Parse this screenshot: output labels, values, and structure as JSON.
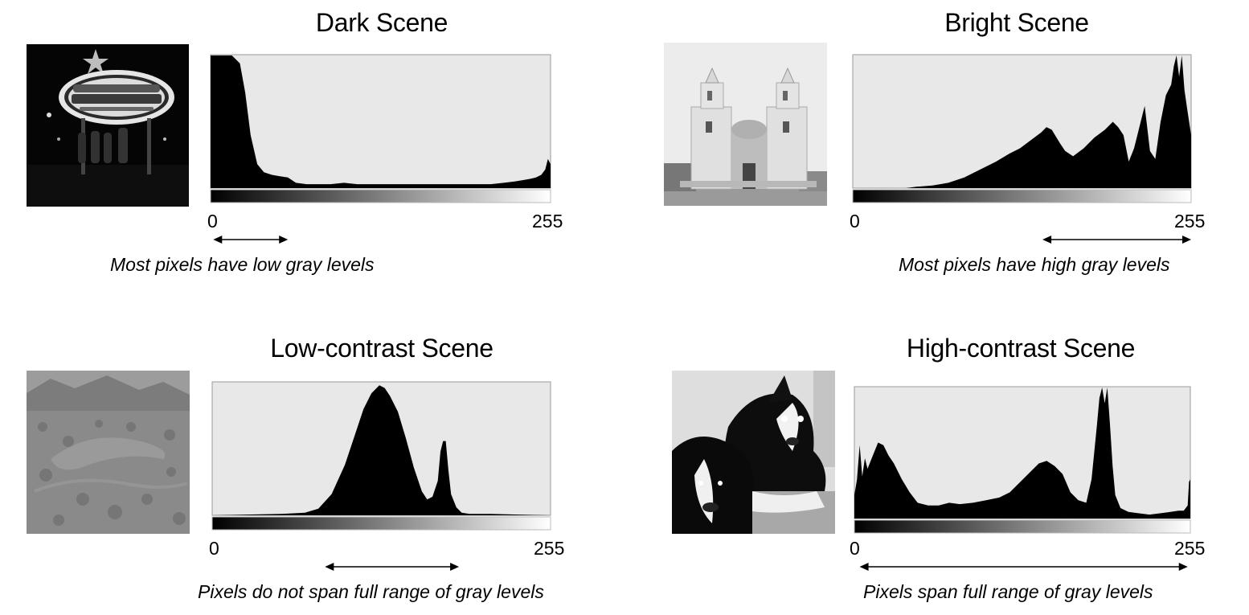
{
  "panels": [
    {
      "id": "dark",
      "title": "Dark Scene",
      "photo_icon": "night-sign-photo",
      "tick_min": "0",
      "tick_max": "255",
      "caption": "Most pixels have low gray levels",
      "range": [
        2,
        58
      ]
    },
    {
      "id": "bright",
      "title": "Bright Scene",
      "photo_icon": "church-photo",
      "tick_min": "0",
      "tick_max": "255",
      "caption": "Most pixels have high gray levels",
      "range": [
        143,
        255
      ]
    },
    {
      "id": "low",
      "title": "Low-contrast Scene",
      "photo_icon": "desert-photo",
      "tick_min": "0",
      "tick_max": "255",
      "caption": "Pixels do not span full range of gray levels",
      "range": [
        85,
        186
      ]
    },
    {
      "id": "high",
      "title": "High-contrast Scene",
      "photo_icon": "dogs-photo",
      "tick_min": "0",
      "tick_max": "255",
      "caption": "Pixels span full range of gray levels",
      "range": [
        4,
        253
      ]
    }
  ],
  "chart_data": [
    {
      "type": "area",
      "panel": "dark",
      "x": [
        0,
        8,
        16,
        22,
        26,
        30,
        35,
        40,
        46,
        52,
        58,
        64,
        72,
        80,
        90,
        100,
        110,
        120,
        130,
        140,
        150,
        160,
        170,
        180,
        190,
        200,
        210,
        220,
        228,
        234,
        240,
        244,
        248,
        251,
        253,
        255
      ],
      "y": [
        1.0,
        1.0,
        1.0,
        0.94,
        0.72,
        0.4,
        0.18,
        0.12,
        0.1,
        0.09,
        0.08,
        0.04,
        0.03,
        0.03,
        0.03,
        0.04,
        0.03,
        0.03,
        0.03,
        0.03,
        0.03,
        0.03,
        0.03,
        0.03,
        0.03,
        0.03,
        0.03,
        0.04,
        0.05,
        0.06,
        0.07,
        0.08,
        0.1,
        0.14,
        0.22,
        0.18
      ],
      "xlim": [
        0,
        255
      ],
      "ylim": [
        0,
        1
      ]
    },
    {
      "type": "area",
      "panel": "bright",
      "x": [
        0,
        40,
        48,
        60,
        72,
        84,
        96,
        108,
        118,
        126,
        134,
        142,
        146,
        150,
        156,
        160,
        166,
        174,
        182,
        190,
        196,
        200,
        204,
        208,
        212,
        216,
        220,
        224,
        228,
        232,
        236,
        240,
        242,
        244,
        246,
        248,
        250,
        252,
        255
      ],
      "y": [
        0,
        0,
        0.01,
        0.02,
        0.04,
        0.08,
        0.14,
        0.2,
        0.26,
        0.3,
        0.36,
        0.42,
        0.46,
        0.44,
        0.34,
        0.28,
        0.24,
        0.3,
        0.38,
        0.44,
        0.5,
        0.46,
        0.4,
        0.2,
        0.3,
        0.46,
        0.62,
        0.28,
        0.22,
        0.5,
        0.7,
        0.78,
        0.92,
        1.0,
        0.84,
        1.0,
        0.74,
        0.6,
        0.4
      ],
      "xlim": [
        0,
        255
      ],
      "ylim": [
        0,
        1
      ]
    },
    {
      "type": "area",
      "panel": "low",
      "x": [
        0,
        52,
        70,
        80,
        90,
        100,
        108,
        114,
        120,
        126,
        130,
        134,
        140,
        146,
        152,
        158,
        162,
        166,
        170,
        172,
        174,
        176,
        178,
        180,
        184,
        188,
        194,
        210,
        255
      ],
      "y": [
        0,
        0.01,
        0.02,
        0.05,
        0.16,
        0.38,
        0.62,
        0.8,
        0.92,
        0.98,
        0.96,
        0.9,
        0.78,
        0.58,
        0.36,
        0.18,
        0.12,
        0.14,
        0.26,
        0.48,
        0.56,
        0.56,
        0.34,
        0.16,
        0.06,
        0.02,
        0.01,
        0.01,
        0
      ],
      "xlim": [
        0,
        255
      ],
      "ylim": [
        0,
        1
      ]
    },
    {
      "type": "area",
      "panel": "high",
      "x": [
        0,
        2,
        4,
        6,
        8,
        10,
        14,
        18,
        22,
        26,
        30,
        36,
        42,
        48,
        56,
        64,
        72,
        80,
        90,
        100,
        110,
        118,
        126,
        134,
        140,
        146,
        152,
        158,
        164,
        170,
        176,
        180,
        184,
        186,
        188,
        190,
        192,
        194,
        196,
        198,
        202,
        208,
        216,
        224,
        232,
        240,
        246,
        250,
        253,
        254,
        255
      ],
      "y": [
        0.18,
        0.3,
        0.56,
        0.32,
        0.46,
        0.38,
        0.48,
        0.58,
        0.56,
        0.48,
        0.42,
        0.3,
        0.2,
        0.12,
        0.1,
        0.1,
        0.12,
        0.11,
        0.12,
        0.14,
        0.16,
        0.2,
        0.28,
        0.36,
        0.42,
        0.44,
        0.4,
        0.34,
        0.2,
        0.14,
        0.12,
        0.3,
        0.7,
        0.92,
        1.0,
        0.88,
        1.0,
        0.72,
        0.4,
        0.18,
        0.08,
        0.05,
        0.04,
        0.03,
        0.04,
        0.05,
        0.06,
        0.06,
        0.1,
        0.28,
        0.3
      ],
      "xlim": [
        0,
        255
      ],
      "ylim": [
        0,
        1
      ]
    }
  ]
}
